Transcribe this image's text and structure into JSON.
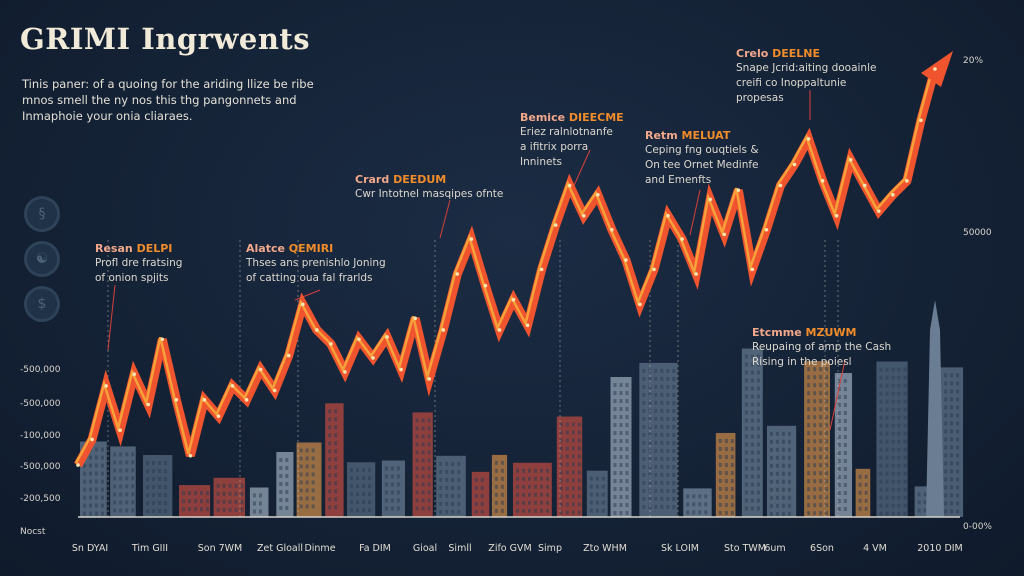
{
  "title": "GRIMI Ingrwents",
  "subtitle": "Tinis paner: of a quoing for the ariding llize be ribe mnos smell the ny nos this thg pangonnets and Inmaphoie your onia cliaraes.",
  "icons": [
    "coin-icon",
    "globe-icon",
    "money-icon"
  ],
  "annotations": [
    {
      "head_a": "Resan",
      "head_b": "DELPI",
      "lines": [
        "Profl dre fratsing",
        "of onion spjits"
      ]
    },
    {
      "head_a": "Alatce",
      "head_b": "QEMIRI",
      "lines": [
        "Thses ans prenishlo Joning",
        "of catting oua fal frarlds"
      ]
    },
    {
      "head_a": "Crard",
      "head_b": "DEEDUM",
      "lines": [
        "Cwr Intotnel masqipes ofnte"
      ]
    },
    {
      "head_a": "Bemice",
      "head_b": "DIEECME",
      "lines": [
        "Eriez ralnlotnanfe",
        "a ifitrix porra",
        "Inninets"
      ]
    },
    {
      "head_a": "Retm",
      "head_b": "MELUAT",
      "lines": [
        "Ceping fng ouqtiels &",
        "On tee Ornet Medinfe",
        "and Emenfts"
      ]
    },
    {
      "head_a": "Crelo",
      "head_b": "DEELNE",
      "lines": [
        "Snape Jcrid:aiting dooainle",
        "creifi co Inoppaltunie",
        "propesas"
      ]
    },
    {
      "head_a": "Etcmme",
      "head_b": "MZUWM",
      "lines": [
        "Reupaing of amp the Cash",
        "Rising in the poiesl"
      ]
    }
  ],
  "colors": {
    "background": "#142236",
    "line": "#f0542e",
    "line_highlight": "#f7a13a",
    "accent_orange": "#f08c2a",
    "accent_pink": "#f3a88a"
  },
  "chart_data": {
    "type": "line",
    "title": "GRIMI Ingrwents",
    "xlabel": "",
    "ylabel": "",
    "grid": false,
    "legend": "none",
    "left_tick_labels": [
      "-500,000",
      "-500,000",
      "-100,000",
      "-500,000",
      "-200,500",
      "Nocst"
    ],
    "right_tick_labels": [
      "20%",
      "50000",
      "0-00%"
    ],
    "x_tick_labels": [
      "Sn DYAI",
      "Tim GIII",
      "Son 7WM",
      "Zet Gloall",
      "Dinme",
      "Fa DIM",
      "Gioal",
      "Simll",
      "Zifo GVM",
      "Simp",
      "Zto WHM",
      "Sk LOIM",
      "Sto TWM",
      "6um",
      "6Son",
      "4 VM",
      "2010 DIM"
    ],
    "ylim_right_percent": [
      0,
      20
    ],
    "series": [
      {
        "values_percent": [
          2.7,
          3.8,
          6.1,
          4.2,
          6.6,
          5.3,
          8.1,
          5.5,
          3.1,
          5.5,
          4.8,
          6.1,
          5.5,
          6.8,
          5.9,
          7.4,
          9.6,
          8.5,
          7.9,
          6.7,
          8.1,
          7.3,
          8.2,
          6.8,
          9.0,
          6.4,
          8.5,
          10.9,
          12.4,
          10.4,
          8.5,
          9.8,
          8.7,
          11.1,
          13.0,
          14.7,
          13.4,
          14.3,
          12.8,
          11.5,
          9.6,
          11.1,
          13.4,
          12.4,
          10.9,
          14.1,
          12.6,
          14.5,
          11.1,
          12.8,
          14.7,
          15.6,
          16.7,
          14.9,
          13.4,
          15.8,
          14.7,
          13.6,
          14.3,
          14.9,
          17.5,
          19.7
        ]
      }
    ]
  }
}
